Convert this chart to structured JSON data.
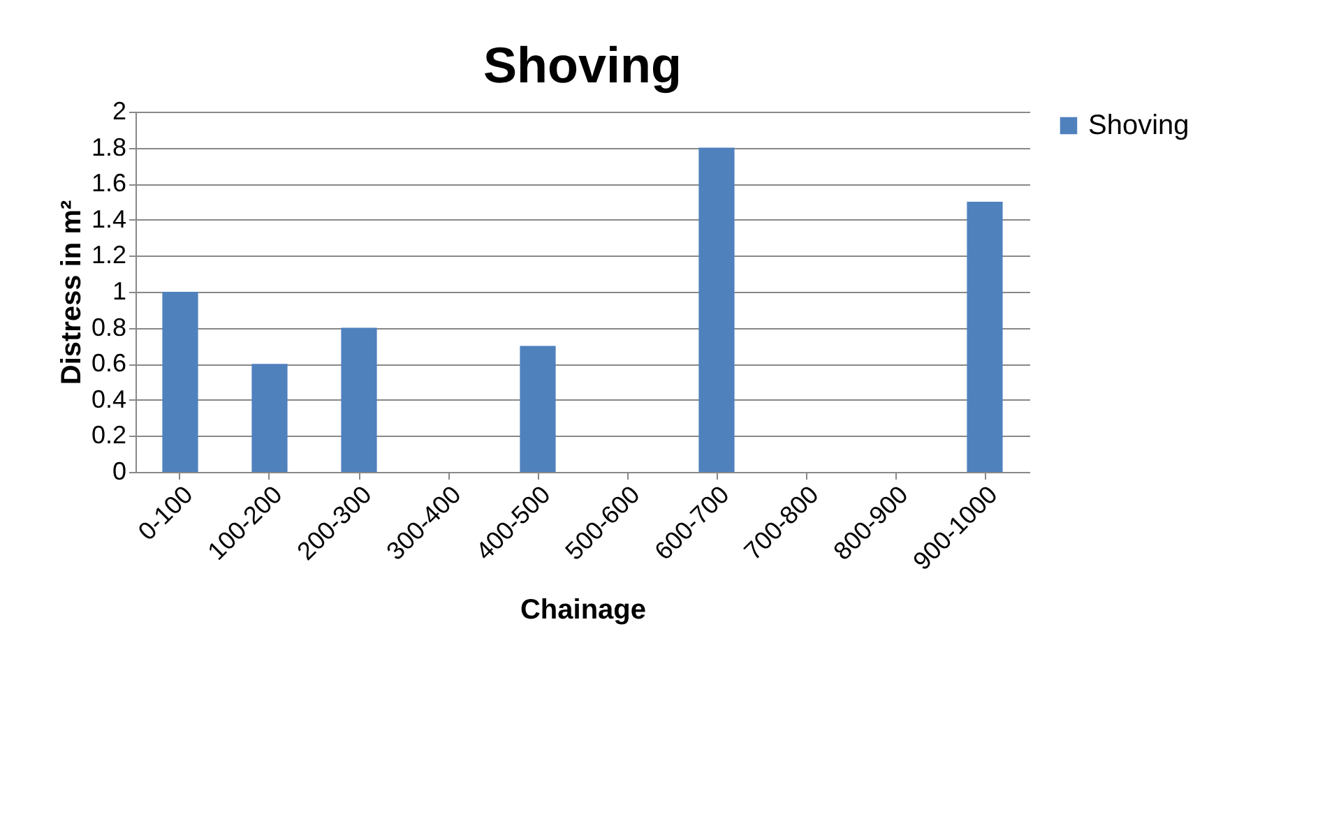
{
  "chart_data": {
    "type": "bar",
    "title": "Shoving",
    "xlabel": "Chainage",
    "ylabel": "Distress in m²",
    "categories": [
      "0-100",
      "100-200",
      "200-300",
      "300-400",
      "400-500",
      "500-600",
      "600-700",
      "700-800",
      "800-900",
      "900-1000"
    ],
    "series": [
      {
        "name": "Shoving",
        "color": "#4f81bd",
        "values": [
          1,
          0.6,
          0.8,
          0,
          0.7,
          0,
          1.8,
          0,
          0,
          1.5
        ]
      }
    ],
    "ylim": [
      0,
      2
    ],
    "yticks": [
      0,
      0.2,
      0.4,
      0.6,
      0.8,
      1,
      1.2,
      1.4,
      1.6,
      1.8,
      2
    ],
    "grid": "y",
    "legend": "right"
  }
}
